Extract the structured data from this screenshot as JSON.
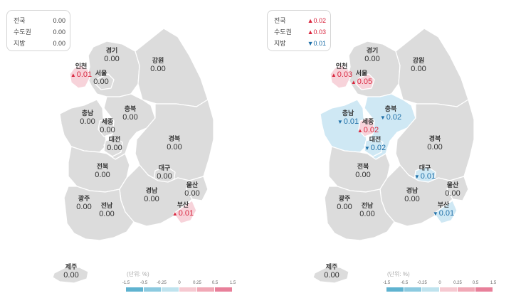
{
  "colors": {
    "up": "#d9273f",
    "down": "#1e6fa8",
    "neutral_region": "#dcdcdc",
    "up_region": "#f7d3da",
    "down_region": "#cfe8f4",
    "scale": [
      "#5fb3d0",
      "#8ccae0",
      "#bfe3ee",
      "#f6c9d1",
      "#f1a8b6",
      "#e8809a"
    ]
  },
  "panels": [
    {
      "summary": [
        {
          "label": "전국",
          "value": "0.00",
          "dir": "flat"
        },
        {
          "label": "수도권",
          "value": "0.00",
          "dir": "flat"
        },
        {
          "label": "지방",
          "value": "0.00",
          "dir": "flat"
        }
      ],
      "regions": {
        "incheon": {
          "name": "인천",
          "value": "0.01",
          "dir": "up"
        },
        "gyeonggi": {
          "name": "경기",
          "value": "0.00",
          "dir": "flat"
        },
        "seoul": {
          "name": "서울",
          "value": "0.00",
          "dir": "flat"
        },
        "gangwon": {
          "name": "강원",
          "value": "0.00",
          "dir": "flat"
        },
        "chungnam": {
          "name": "충남",
          "value": "0.00",
          "dir": "flat"
        },
        "sejong": {
          "name": "세종",
          "value": "0.00",
          "dir": "flat"
        },
        "chungbuk": {
          "name": "충북",
          "value": "0.00",
          "dir": "flat"
        },
        "daejeon": {
          "name": "대전",
          "value": "0.00",
          "dir": "flat"
        },
        "gyeongbuk": {
          "name": "경북",
          "value": "0.00",
          "dir": "flat"
        },
        "jeonbuk": {
          "name": "전북",
          "value": "0.00",
          "dir": "flat"
        },
        "daegu": {
          "name": "대구",
          "value": "0.00",
          "dir": "flat"
        },
        "ulsan": {
          "name": "울산",
          "value": "0.00",
          "dir": "flat"
        },
        "gyeongnam": {
          "name": "경남",
          "value": "0.00",
          "dir": "flat"
        },
        "gwangju": {
          "name": "광주",
          "value": "0.00",
          "dir": "flat"
        },
        "jeonnam": {
          "name": "전남",
          "value": "0.00",
          "dir": "flat"
        },
        "busan": {
          "name": "부산",
          "value": "0.01",
          "dir": "up"
        },
        "jeju": {
          "name": "제주",
          "value": "0.00",
          "dir": "flat"
        }
      }
    },
    {
      "summary": [
        {
          "label": "전국",
          "value": "0.02",
          "dir": "up"
        },
        {
          "label": "수도권",
          "value": "0.03",
          "dir": "up"
        },
        {
          "label": "지방",
          "value": "0.01",
          "dir": "down"
        }
      ],
      "regions": {
        "incheon": {
          "name": "인천",
          "value": "0.03",
          "dir": "up"
        },
        "gyeonggi": {
          "name": "경기",
          "value": "0.00",
          "dir": "flat"
        },
        "seoul": {
          "name": "서울",
          "value": "0.05",
          "dir": "up"
        },
        "gangwon": {
          "name": "강원",
          "value": "0.00",
          "dir": "flat"
        },
        "chungnam": {
          "name": "충남",
          "value": "0.01",
          "dir": "down"
        },
        "sejong": {
          "name": "세종",
          "value": "0.02",
          "dir": "up"
        },
        "chungbuk": {
          "name": "충북",
          "value": "0.02",
          "dir": "down"
        },
        "daejeon": {
          "name": "대전",
          "value": "0.02",
          "dir": "down"
        },
        "gyeongbuk": {
          "name": "경북",
          "value": "0.00",
          "dir": "flat"
        },
        "jeonbuk": {
          "name": "전북",
          "value": "0.00",
          "dir": "flat"
        },
        "daegu": {
          "name": "대구",
          "value": "0.01",
          "dir": "down"
        },
        "ulsan": {
          "name": "울산",
          "value": "0.00",
          "dir": "flat"
        },
        "gyeongnam": {
          "name": "경남",
          "value": "0.00",
          "dir": "flat"
        },
        "gwangju": {
          "name": "광주",
          "value": "0.00",
          "dir": "flat"
        },
        "jeonnam": {
          "name": "전남",
          "value": "0.00",
          "dir": "flat"
        },
        "busan": {
          "name": "부산",
          "value": "0.01",
          "dir": "down"
        },
        "jeju": {
          "name": "제주",
          "value": "0.00",
          "dir": "flat"
        }
      }
    }
  ],
  "legend": {
    "unit": "(단위: %)",
    "ticks": [
      "-1.5",
      "-0.5",
      "-0.25",
      "0",
      "0.25",
      "0.5",
      "1.5"
    ]
  }
}
